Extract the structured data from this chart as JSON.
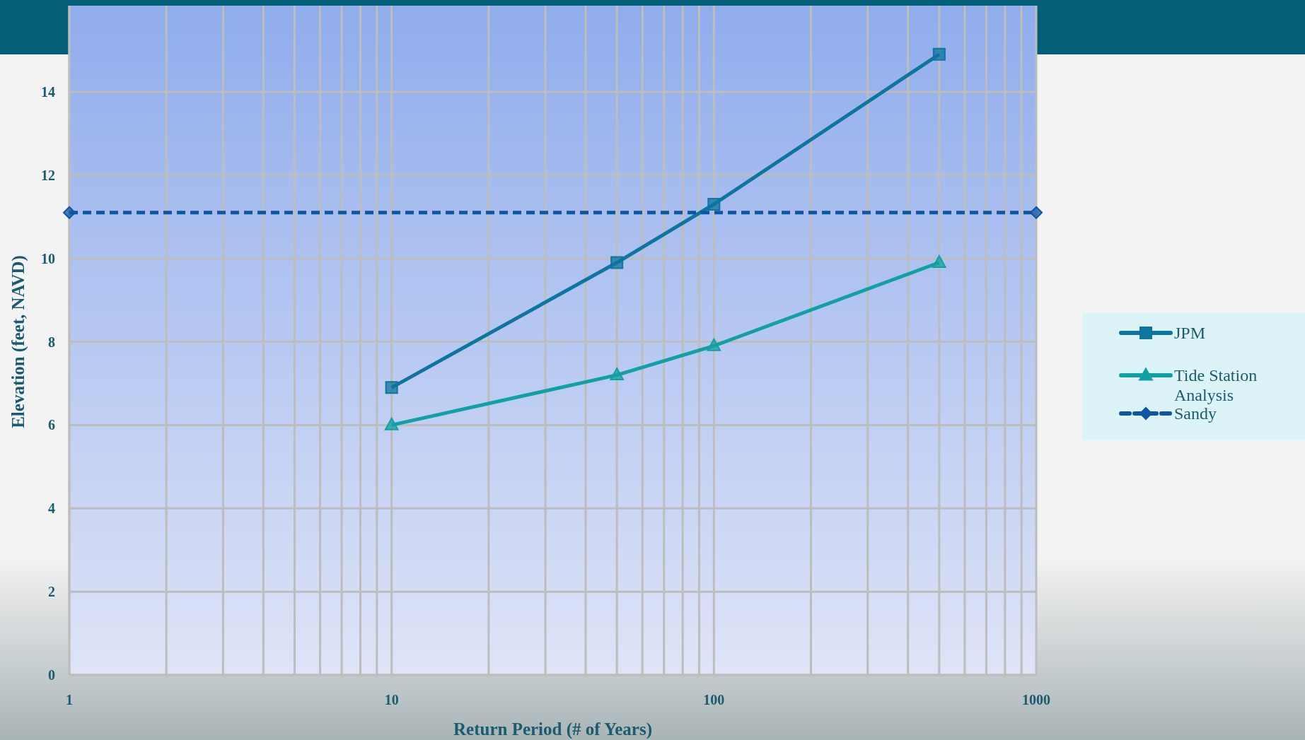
{
  "chart_data": {
    "type": "line",
    "xlabel": "Return Period (# of Years)",
    "ylabel": "Elevation (feet, NAVD)",
    "log": "x",
    "xlim": [
      1,
      1000
    ],
    "xticks": [
      1,
      {
        "value": 2,
        "label": null
      },
      {
        "value": 3,
        "label": null
      },
      {
        "value": 4,
        "label": null
      },
      {
        "value": 5,
        "label": null
      },
      {
        "value": 6,
        "label": null
      },
      {
        "value": 7,
        "label": null
      },
      {
        "value": 8,
        "label": null
      },
      {
        "value": 9,
        "label": null
      },
      10,
      {
        "value": 20,
        "label": null
      },
      {
        "value": 30,
        "label": null
      },
      {
        "value": 40,
        "label": null
      },
      {
        "value": 50,
        "label": null
      },
      {
        "value": 60,
        "label": null
      },
      {
        "value": 70,
        "label": null
      },
      {
        "value": 80,
        "label": null
      },
      {
        "value": 90,
        "label": null
      },
      100,
      {
        "value": 200,
        "label": null
      },
      {
        "value": 300,
        "label": null
      },
      {
        "value": 400,
        "label": null
      },
      {
        "value": 500,
        "label": null
      },
      {
        "value": 600,
        "label": null
      },
      {
        "value": 700,
        "label": null
      },
      {
        "value": 800,
        "label": null
      },
      {
        "value": 900,
        "label": null
      },
      1000
    ],
    "ylim": [
      0,
      16
    ],
    "yticks": [
      0,
      2,
      4,
      6,
      8,
      10,
      12,
      14
    ],
    "grid": true,
    "legend": "right",
    "series": [
      {
        "name": "JPM",
        "color": "#0e74a0",
        "marker": "square",
        "line_style": "solid",
        "x": [
          10,
          50,
          100,
          500
        ],
        "values": [
          6.9,
          9.9,
          11.3,
          14.9
        ]
      },
      {
        "name": "Tide Station Analysis",
        "color": "#11a0a4",
        "marker": "triangle",
        "line_style": "solid",
        "x": [
          10,
          50,
          100,
          500
        ],
        "values": [
          6.0,
          7.2,
          7.9,
          9.9
        ]
      },
      {
        "name": "Sandy",
        "color": "#0d56a0",
        "marker": "diamond",
        "line_style": "dashed",
        "x": [
          1,
          1000
        ],
        "values": [
          11.1,
          11.1
        ]
      }
    ]
  }
}
